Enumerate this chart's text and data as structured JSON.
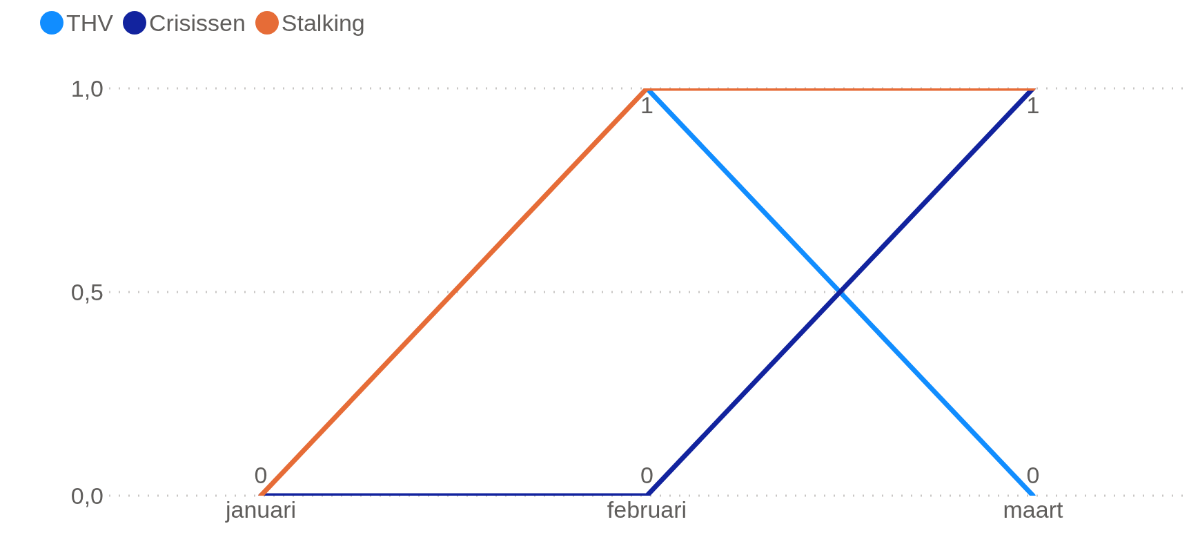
{
  "chart_data": {
    "type": "line",
    "categories": [
      "januari",
      "februari",
      "maart"
    ],
    "series": [
      {
        "name": "THV",
        "color": "#118dff",
        "values": [
          null,
          1,
          0
        ],
        "value_labels": [
          null,
          "1",
          "0"
        ]
      },
      {
        "name": "Crisissen",
        "color": "#12239e",
        "values": [
          0,
          0,
          1
        ],
        "value_labels": [
          null,
          "0",
          "1"
        ]
      },
      {
        "name": "Stalking",
        "color": "#e66c37",
        "values": [
          0,
          1,
          1
        ],
        "value_labels": [
          "0",
          null,
          null
        ]
      }
    ],
    "ylim": [
      0,
      1
    ],
    "yticks": [
      {
        "value": 0,
        "label": "0,0"
      },
      {
        "value": 0.5,
        "label": "0,5"
      },
      {
        "value": 1,
        "label": "1,0"
      }
    ],
    "grid": "y",
    "legend": "top left",
    "marker": "none",
    "line_style": "solid"
  }
}
